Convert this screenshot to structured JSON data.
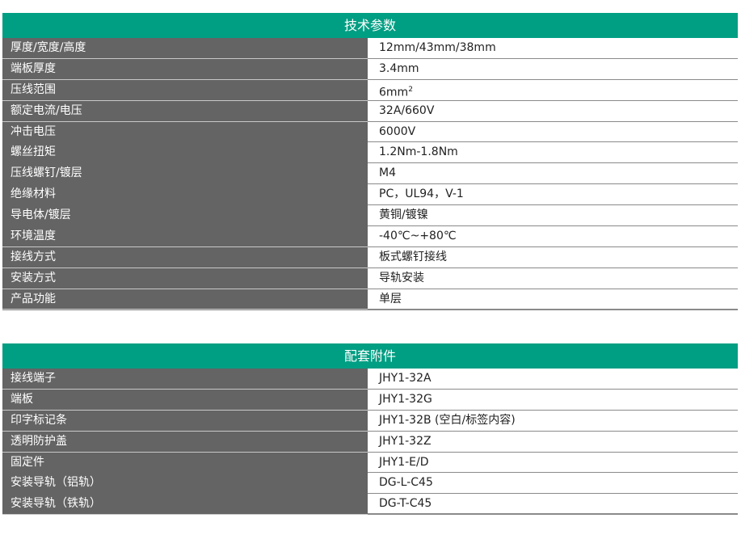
{
  "tech": {
    "title": "技术参数",
    "rows": [
      {
        "k": "厚度/宽度/高度",
        "v": "12mm/43mm/38mm"
      },
      {
        "k": "端板厚度",
        "v": "3.4mm"
      },
      {
        "k": "压线范围",
        "v": "6mm",
        "sup": "2"
      },
      {
        "k": "额定电流/电压",
        "v": "32A/660V"
      },
      {
        "k": "冲击电压",
        "v": "6000V"
      },
      {
        "k": "螺丝扭矩",
        "v": "1.2Nm-1.8Nm"
      },
      {
        "k": "压线螺钉/镀层",
        "v": "M4"
      },
      {
        "k": "绝缘材料",
        "v": "PC，UL94，V-1"
      },
      {
        "k": "导电体/镀层",
        "v": "黄铜/镀镍"
      },
      {
        "k": "环境温度",
        "v": "-40℃~+80℃"
      },
      {
        "k": "接线方式",
        "v": "板式螺钉接线"
      },
      {
        "k": "安装方式",
        "v": "导轨安装"
      },
      {
        "k": "产品功能",
        "v": "单层"
      }
    ]
  },
  "acc": {
    "title": "配套附件",
    "rows": [
      {
        "k": "接线端子",
        "v": "JHY1-32A"
      },
      {
        "k": "端板",
        "v": "JHY1-32G"
      },
      {
        "k": "印字标记条",
        "v": "JHY1-32B (空白/标签内容)"
      },
      {
        "k": "透明防护盖",
        "v": "JHY1-32Z"
      },
      {
        "k": "固定件",
        "v": "JHY1-E/D"
      },
      {
        "k": "安装导轨（铝轨）",
        "v": "DG-L-C45"
      },
      {
        "k": "安装导轨（铁轨）",
        "v": "DG-T-C45"
      }
    ]
  },
  "colors": {
    "header": "#009e83",
    "label_bg": "#646464"
  }
}
